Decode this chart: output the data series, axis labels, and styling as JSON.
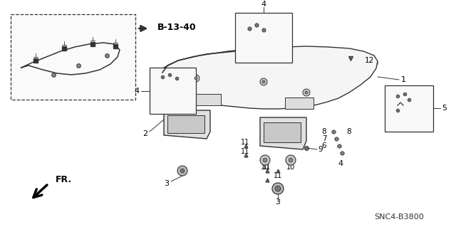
{
  "background_color": "#ffffff",
  "line_color": "#333333",
  "diagram_code": "SNC4-B3800",
  "reference": "B-13-40",
  "figsize": [
    6.4,
    3.19
  ],
  "dpi": 100
}
